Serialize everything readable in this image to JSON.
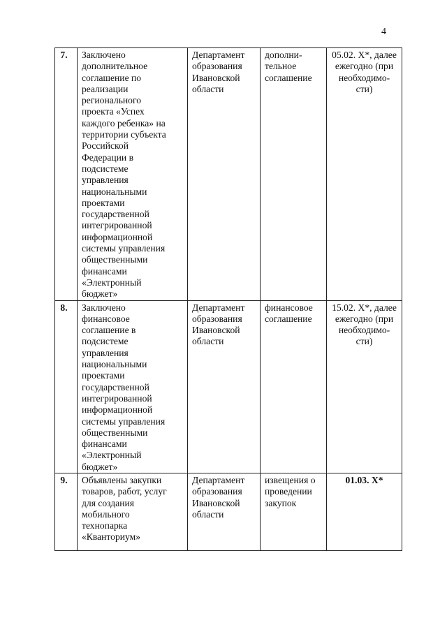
{
  "page_number": "4",
  "rows": [
    {
      "num": "7.",
      "event": "Заключено\nдополнительное\nсоглашение по\nреализации\nрегионального\nпроекта «Успех\nкаждого ребенка» на\nтерритории субъекта\nРоссийской\nФедерации в\nподсистеме\nуправления\nнациональными\nпроектами\nгосударственной\nинтегрированной\nинформационной\nсистемы управления\nобщественными\nфинансами\n«Электронный\nбюджет»",
      "responsible": "Департамент\nобразования\nИвановской\nобласти",
      "document": "дополни-\nтельное\nсоглашение",
      "deadline": "05.02. Х*, далее\nежегодно (при\nнеобходимо-\nсти)"
    },
    {
      "num": "8.",
      "event": "Заключено\nфинансовое\nсоглашение в\nподсистеме\nуправления\nнациональными\nпроектами\nгосударственной\nинтегрированной\nинформационной\nсистемы управления\nобщественными\nфинансами\n«Электронный\nбюджет»",
      "responsible": "Департамент\nобразования\nИвановской\nобласти",
      "document": "финансовое\nсоглашение",
      "deadline": "15.02. Х*, далее\nежегодно (при\nнеобходимо-\nсти)"
    },
    {
      "num": "9.",
      "event": "Объявлены закупки\nтоваров, работ, услуг\nдля создания\nмобильного\nтехнопарка\n«Кванториум»",
      "responsible": "Департамент\nобразования\nИвановской\nобласти",
      "document": "извещения о\nпроведении\nзакупок",
      "deadline": "01.03. Х*"
    }
  ]
}
